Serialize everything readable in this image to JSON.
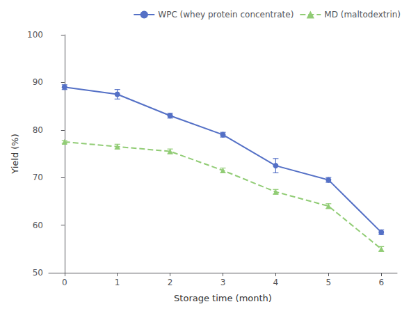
{
  "chart_data": {
    "type": "line",
    "x_label": "Storage time (month)",
    "y_label": "Yield (%)",
    "x": [
      0,
      1,
      2,
      3,
      4,
      5,
      6
    ],
    "series": [
      {
        "name": "WPC (whey protein concentrate)",
        "values": [
          89.0,
          87.5,
          83.0,
          79.0,
          72.5,
          69.5,
          58.5
        ],
        "error": [
          0.5,
          1.0,
          0.5,
          0.5,
          1.5,
          0.5,
          0.5
        ],
        "marker": "circle",
        "line_style": "solid"
      },
      {
        "name": "MD (maltodextrin)",
        "values": [
          77.5,
          76.5,
          75.5,
          71.5,
          67.0,
          64.0,
          55.0
        ],
        "error": [
          0.3,
          0.5,
          0.5,
          0.5,
          0.5,
          0.5,
          0.5
        ],
        "marker": "triangle",
        "line_style": "dashed"
      }
    ],
    "xlim": [
      -0.3,
      6.3
    ],
    "xticks": [
      0,
      1,
      2,
      3,
      4,
      5,
      6
    ],
    "ylim": [
      50,
      100
    ],
    "yticks": [
      50,
      60,
      70,
      80,
      90,
      100
    ],
    "grid": false,
    "legend": "upper right"
  }
}
